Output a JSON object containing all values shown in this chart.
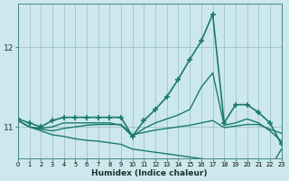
{
  "xlabel": "Humidex (Indice chaleur)",
  "bg_color": "#cce8ec",
  "grid_color": "#99bbbb",
  "line_color": "#1a7a6e",
  "xlim": [
    0,
    23
  ],
  "ylim": [
    10.6,
    12.55
  ],
  "yticks": [
    11,
    12
  ],
  "xticks": [
    0,
    1,
    2,
    3,
    4,
    5,
    6,
    7,
    8,
    9,
    10,
    11,
    12,
    13,
    14,
    15,
    16,
    17,
    18,
    19,
    20,
    21,
    22,
    23
  ],
  "series": [
    {
      "x": [
        0,
        1,
        2,
        3,
        4,
        5,
        6,
        7,
        8,
        9,
        10,
        11,
        12,
        13,
        14,
        15,
        16,
        17,
        18,
        19,
        20,
        21,
        22,
        23
      ],
      "y": [
        11.1,
        11.05,
        11.0,
        11.08,
        11.12,
        11.12,
        11.12,
        11.12,
        11.12,
        11.12,
        10.88,
        11.08,
        11.22,
        11.38,
        11.6,
        11.85,
        12.08,
        12.42,
        11.05,
        11.28,
        11.28,
        11.18,
        11.05,
        10.78
      ],
      "marker": "+",
      "linewidth": 1.2,
      "markersize": 5
    },
    {
      "x": [
        0,
        1,
        2,
        3,
        4,
        5,
        6,
        7,
        8,
        9,
        10,
        11,
        12,
        13,
        14,
        15,
        16,
        17,
        18,
        19,
        20,
        21,
        22,
        23
      ],
      "y": [
        11.08,
        11.0,
        10.98,
        11.0,
        11.05,
        11.05,
        11.05,
        11.05,
        11.05,
        11.02,
        10.88,
        10.98,
        11.05,
        11.1,
        11.15,
        11.22,
        11.5,
        11.68,
        11.02,
        11.05,
        11.1,
        11.05,
        10.95,
        10.82
      ],
      "marker": null,
      "linewidth": 1.0
    },
    {
      "x": [
        0,
        1,
        2,
        3,
        4,
        5,
        6,
        7,
        8,
        9,
        10,
        11,
        12,
        13,
        14,
        15,
        16,
        17,
        18,
        19,
        20,
        21,
        22,
        23
      ],
      "y": [
        11.08,
        11.0,
        10.95,
        10.9,
        10.88,
        10.85,
        10.83,
        10.82,
        10.8,
        10.78,
        10.72,
        10.7,
        10.68,
        10.66,
        10.64,
        10.62,
        10.6,
        10.58,
        10.56,
        10.54,
        10.52,
        10.5,
        10.48,
        10.72
      ],
      "marker": null,
      "linewidth": 1.0
    },
    {
      "x": [
        0,
        1,
        2,
        3,
        4,
        5,
        6,
        7,
        8,
        9,
        10,
        11,
        12,
        13,
        14,
        15,
        16,
        17,
        18,
        19,
        20,
        21,
        22,
        23
      ],
      "y": [
        11.08,
        11.0,
        10.97,
        10.95,
        10.98,
        11.0,
        11.02,
        11.03,
        11.03,
        11.03,
        10.9,
        10.93,
        10.96,
        10.98,
        11.0,
        11.02,
        11.05,
        11.08,
        10.99,
        11.01,
        11.03,
        11.03,
        10.97,
        10.92
      ],
      "marker": null,
      "linewidth": 1.0
    }
  ]
}
